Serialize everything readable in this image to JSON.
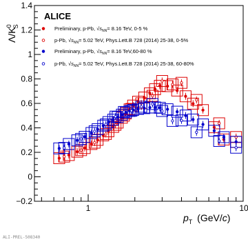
{
  "chart_data": {
    "type": "scatter",
    "title": "ALICE",
    "xlabel": "p_T (GeV/c)",
    "ylabel": "Λ/K⁰_S",
    "xscale": "log",
    "xlim": [
      0.45,
      10
    ],
    "ylim": [
      -0.2,
      1.4
    ],
    "x_tick_labels": [
      "1",
      "10"
    ],
    "y_tick_labels": [
      "−0.2",
      "0",
      "0.2",
      "0.4",
      "0.6",
      "0.8",
      "1",
      "1.2",
      "1.4"
    ],
    "y_ticks": [
      -0.2,
      0,
      0.2,
      0.4,
      0.6,
      0.8,
      1,
      1.2,
      1.4
    ],
    "x_ticks": [
      1,
      10
    ],
    "legend_position": "top-left",
    "watermark": "ALI-PREL-508340",
    "colors": {
      "red": "#dd0000",
      "blue": "#0000cc"
    },
    "series": [
      {
        "name": "Preliminary, p-Pb, √s_NN= 8.16 TeV, 0-5 %",
        "legend": {
          "pre": "Preliminary, p-Pb, ",
          "post": "= 8.16 TeV, 0-5 %"
        },
        "color": "#dd0000",
        "marker": "filled",
        "x": [
          0.65,
          0.75,
          0.85,
          0.95,
          1.05,
          1.15,
          1.25,
          1.35,
          1.45,
          1.55,
          1.65,
          1.75,
          1.85,
          1.95,
          2.1,
          2.3,
          2.5,
          2.7,
          2.9,
          3.25,
          3.75,
          4.25,
          4.75,
          5.5,
          6.5,
          7.5,
          9.0
        ],
        "y": [
          0.152,
          0.178,
          0.205,
          0.235,
          0.268,
          0.302,
          0.339,
          0.372,
          0.408,
          0.443,
          0.483,
          0.518,
          0.551,
          0.582,
          0.614,
          0.648,
          0.682,
          0.716,
          0.744,
          0.741,
          0.705,
          0.658,
          0.598,
          0.545,
          0.405,
          0.305,
          0.285
        ]
      },
      {
        "name": "p-Pb, √s_NN= 5.02 TeV, Phys.Lett.B 728 (2014) 25-38, 0-5%",
        "legend": {
          "pre": "p-Pb, ",
          "post": "= 5.02 TeV, Phys.Lett.B 728 (2014) 25-38, 0-5%"
        },
        "color": "#dd0000",
        "marker": "open",
        "x": [
          0.7,
          0.9,
          1.1,
          1.3,
          1.5,
          1.7,
          1.9,
          2.2,
          2.6,
          3.0,
          3.5,
          4.0,
          5.0,
          7.0,
          9.0
        ],
        "y": [
          0.165,
          0.218,
          0.279,
          0.35,
          0.425,
          0.5,
          0.555,
          0.601,
          0.662,
          0.783,
          0.755,
          0.768,
          0.628,
          0.437,
          0.325
        ]
      },
      {
        "name": "Preliminary, p-Pb, √s_NN= 8.16 TeV,60-80 %",
        "legend": {
          "pre": "Preliminary, p-Pb, ",
          "post": "= 8.16 TeV,60-80 %"
        },
        "color": "#0000cc",
        "marker": "filled",
        "x": [
          0.65,
          0.75,
          0.85,
          0.95,
          1.05,
          1.15,
          1.25,
          1.35,
          1.45,
          1.55,
          1.65,
          1.75,
          1.85,
          1.95,
          2.1,
          2.3,
          2.5,
          2.7,
          2.9,
          3.25,
          3.75,
          4.25,
          4.75,
          5.5,
          6.5,
          7.5,
          9.0
        ],
        "y": [
          0.232,
          0.268,
          0.298,
          0.327,
          0.358,
          0.389,
          0.418,
          0.447,
          0.467,
          0.488,
          0.508,
          0.526,
          0.538,
          0.546,
          0.555,
          0.561,
          0.566,
          0.567,
          0.564,
          0.552,
          0.532,
          0.501,
          0.468,
          0.428,
          0.376,
          0.324,
          0.286
        ]
      },
      {
        "name": "p-Pb, √s_NN= 5.02 TeV, Phys.Lett.B 728 (2014) 25-38, 60-80%",
        "legend": {
          "pre": "p-Pb, ",
          "post": "= 5.02 TeV, Phys.Lett.B 728 (2014) 25-38, 60-80%"
        },
        "color": "#0000cc",
        "marker": "open",
        "x": [
          0.7,
          0.9,
          1.1,
          1.3,
          1.5,
          1.7,
          1.9,
          2.2,
          2.6,
          3.0,
          3.5,
          4.0,
          5.0,
          7.0,
          9.0
        ],
        "y": [
          0.236,
          0.31,
          0.372,
          0.428,
          0.492,
          0.53,
          0.54,
          0.573,
          0.595,
          0.538,
          0.457,
          0.461,
          0.364,
          0.293,
          0.238
        ]
      }
    ]
  }
}
